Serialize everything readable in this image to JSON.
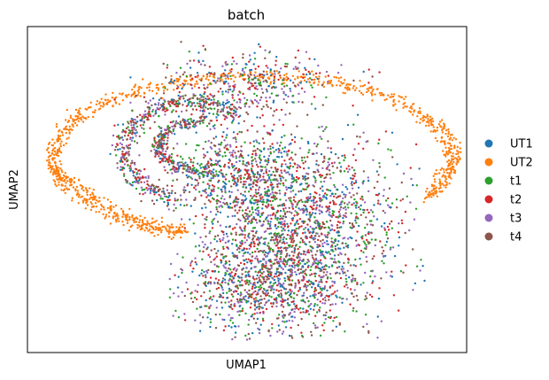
{
  "chart_data": {
    "type": "scatter",
    "title": "batch",
    "xlabel": "UMAP1",
    "ylabel": "UMAP2",
    "xticks": "none",
    "yticks": "none",
    "grid": false,
    "legend_placement": "right",
    "series": [
      {
        "name": "UT1",
        "color": "#1f77b4"
      },
      {
        "name": "UT2",
        "color": "#ff7f0e"
      },
      {
        "name": "t1",
        "color": "#2ca02c"
      },
      {
        "name": "t2",
        "color": "#d62728"
      },
      {
        "name": "t3",
        "color": "#9467bd"
      },
      {
        "name": "t4",
        "color": "#8c564b"
      }
    ]
  }
}
